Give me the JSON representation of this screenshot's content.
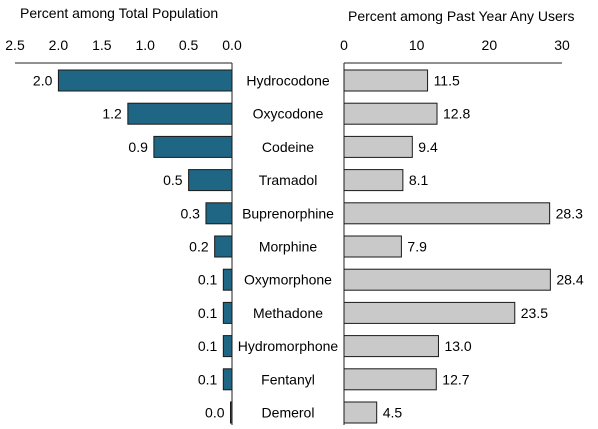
{
  "chart_data": [
    {
      "type": "bar",
      "orientation": "horizontal",
      "direction": "right-to-left",
      "title": "Percent among Total Population",
      "categories": [
        "Hydrocodone",
        "Oxycodone",
        "Codeine",
        "Tramadol",
        "Buprenorphine",
        "Morphine",
        "Oxymorphone",
        "Methadone",
        "Hydromorphone",
        "Fentanyl",
        "Demerol"
      ],
      "values": [
        2.0,
        1.2,
        0.9,
        0.5,
        0.3,
        0.2,
        0.1,
        0.1,
        0.1,
        0.1,
        0.0
      ],
      "value_labels": [
        "2.0",
        "1.2",
        "0.9",
        "0.5",
        "0.3",
        "0.2",
        "0.1",
        "0.1",
        "0.1",
        "0.1",
        "0.0"
      ],
      "xlim": [
        0,
        2.5
      ],
      "ticks": [
        2.5,
        2.0,
        1.5,
        1.0,
        0.5,
        0.0
      ],
      "tick_labels": [
        "2.5",
        "2.0",
        "1.5",
        "1.0",
        "0.5",
        "0.0"
      ],
      "color": "#1f6584",
      "grid": false
    },
    {
      "type": "bar",
      "orientation": "horizontal",
      "direction": "left-to-right",
      "title": "Percent among Past Year Any Users",
      "categories": [
        "Hydrocodone",
        "Oxycodone",
        "Codeine",
        "Tramadol",
        "Buprenorphine",
        "Morphine",
        "Oxymorphone",
        "Methadone",
        "Hydromorphone",
        "Fentanyl",
        "Demerol"
      ],
      "values": [
        11.5,
        12.8,
        9.4,
        8.1,
        28.3,
        7.9,
        28.4,
        23.5,
        13.0,
        12.7,
        4.5
      ],
      "value_labels": [
        "11.5",
        "12.8",
        "9.4",
        "8.1",
        "28.3",
        "7.9",
        "28.4",
        "23.5",
        "13.0",
        "12.7",
        "4.5"
      ],
      "xlim": [
        0,
        30
      ],
      "ticks": [
        0,
        10,
        20,
        30
      ],
      "tick_labels": [
        "0",
        "10",
        "20",
        "30"
      ],
      "color": "#c9c9c9",
      "grid": false
    }
  ]
}
